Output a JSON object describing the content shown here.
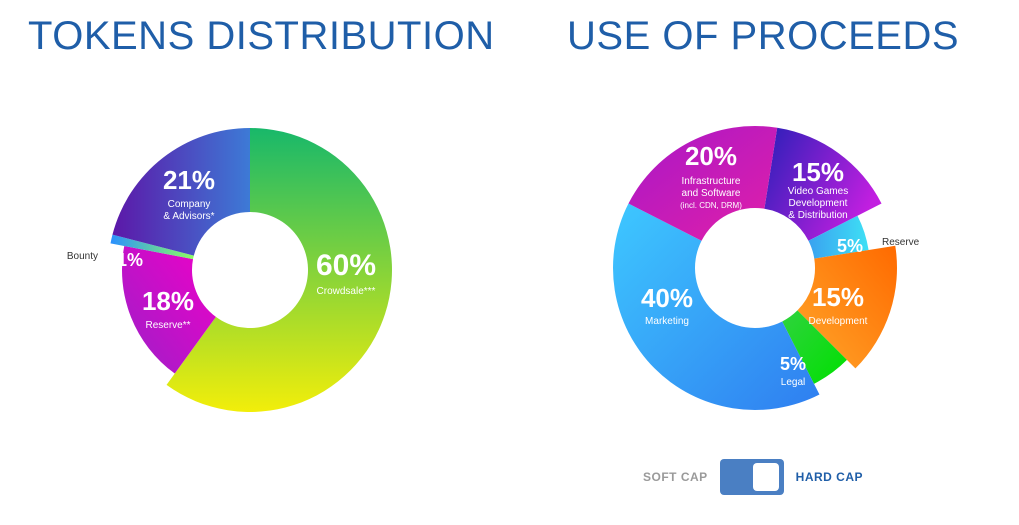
{
  "left": {
    "title": "TOKENS DISTRIBUTION",
    "chart_data": {
      "type": "pie",
      "title": "TOKENS DISTRIBUTION",
      "slices": [
        {
          "label": "Crowdsale***",
          "value": 60,
          "value_label": "60%",
          "colors": [
            "#18b86a",
            "#f2ee0a"
          ]
        },
        {
          "label": "Reserve**",
          "value": 18,
          "value_label": "18%",
          "colors": [
            "#f000c8",
            "#9b20c8"
          ]
        },
        {
          "label": "Bounty",
          "value": 1,
          "value_label": "1%",
          "colors": [
            "#2a90ff",
            "#8cff60"
          ]
        },
        {
          "label": "Company & Advisors*",
          "value": 21,
          "value_label": "21%",
          "colors": [
            "#5c17a8",
            "#3d7ad6"
          ]
        }
      ]
    }
  },
  "right": {
    "title": "USE OF PROCEEDS",
    "chart_data": {
      "type": "pie",
      "title": "USE OF PROCEEDS",
      "slices": [
        {
          "label": "Video Games Development & Distribution",
          "value": 15,
          "value_label": "15%",
          "colors": [
            "#2a1fb8",
            "#c21fe0"
          ]
        },
        {
          "label": "Reserve",
          "value": 5,
          "value_label": "5%",
          "colors": [
            "#3aa2f0",
            "#3ee0f5"
          ]
        },
        {
          "label": "Development",
          "value": 15,
          "value_label": "15%",
          "colors": [
            "#ff6a00",
            "#ffa62a"
          ]
        },
        {
          "label": "Legal",
          "value": 5,
          "value_label": "5%",
          "colors": [
            "#2fd33e",
            "#00e000"
          ]
        },
        {
          "label": "Marketing",
          "value": 40,
          "value_label": "40%",
          "colors": [
            "#2f7ef0",
            "#3ec8ff"
          ]
        },
        {
          "label": "Infrastructure and Software (incl. CDN, DRM)",
          "value": 20,
          "value_label": "20%",
          "colors": [
            "#e21fa8",
            "#a818c8"
          ]
        }
      ]
    }
  },
  "toggle": {
    "soft_label": "SOFT CAP",
    "hard_label": "HARD CAP",
    "selected": "HARD CAP"
  },
  "chart_data": [
    {
      "type": "pie",
      "title": "TOKENS DISTRIBUTION",
      "categories": [
        "Crowdsale***",
        "Reserve**",
        "Bounty",
        "Company & Advisors*"
      ],
      "values": [
        60,
        18,
        1,
        21
      ]
    },
    {
      "type": "pie",
      "title": "USE OF PROCEEDS",
      "categories": [
        "Video Games Development & Distribution",
        "Reserve",
        "Development",
        "Legal",
        "Marketing",
        "Infrastructure and Software (incl. CDN, DRM)"
      ],
      "values": [
        15,
        5,
        15,
        5,
        40,
        20
      ]
    }
  ]
}
